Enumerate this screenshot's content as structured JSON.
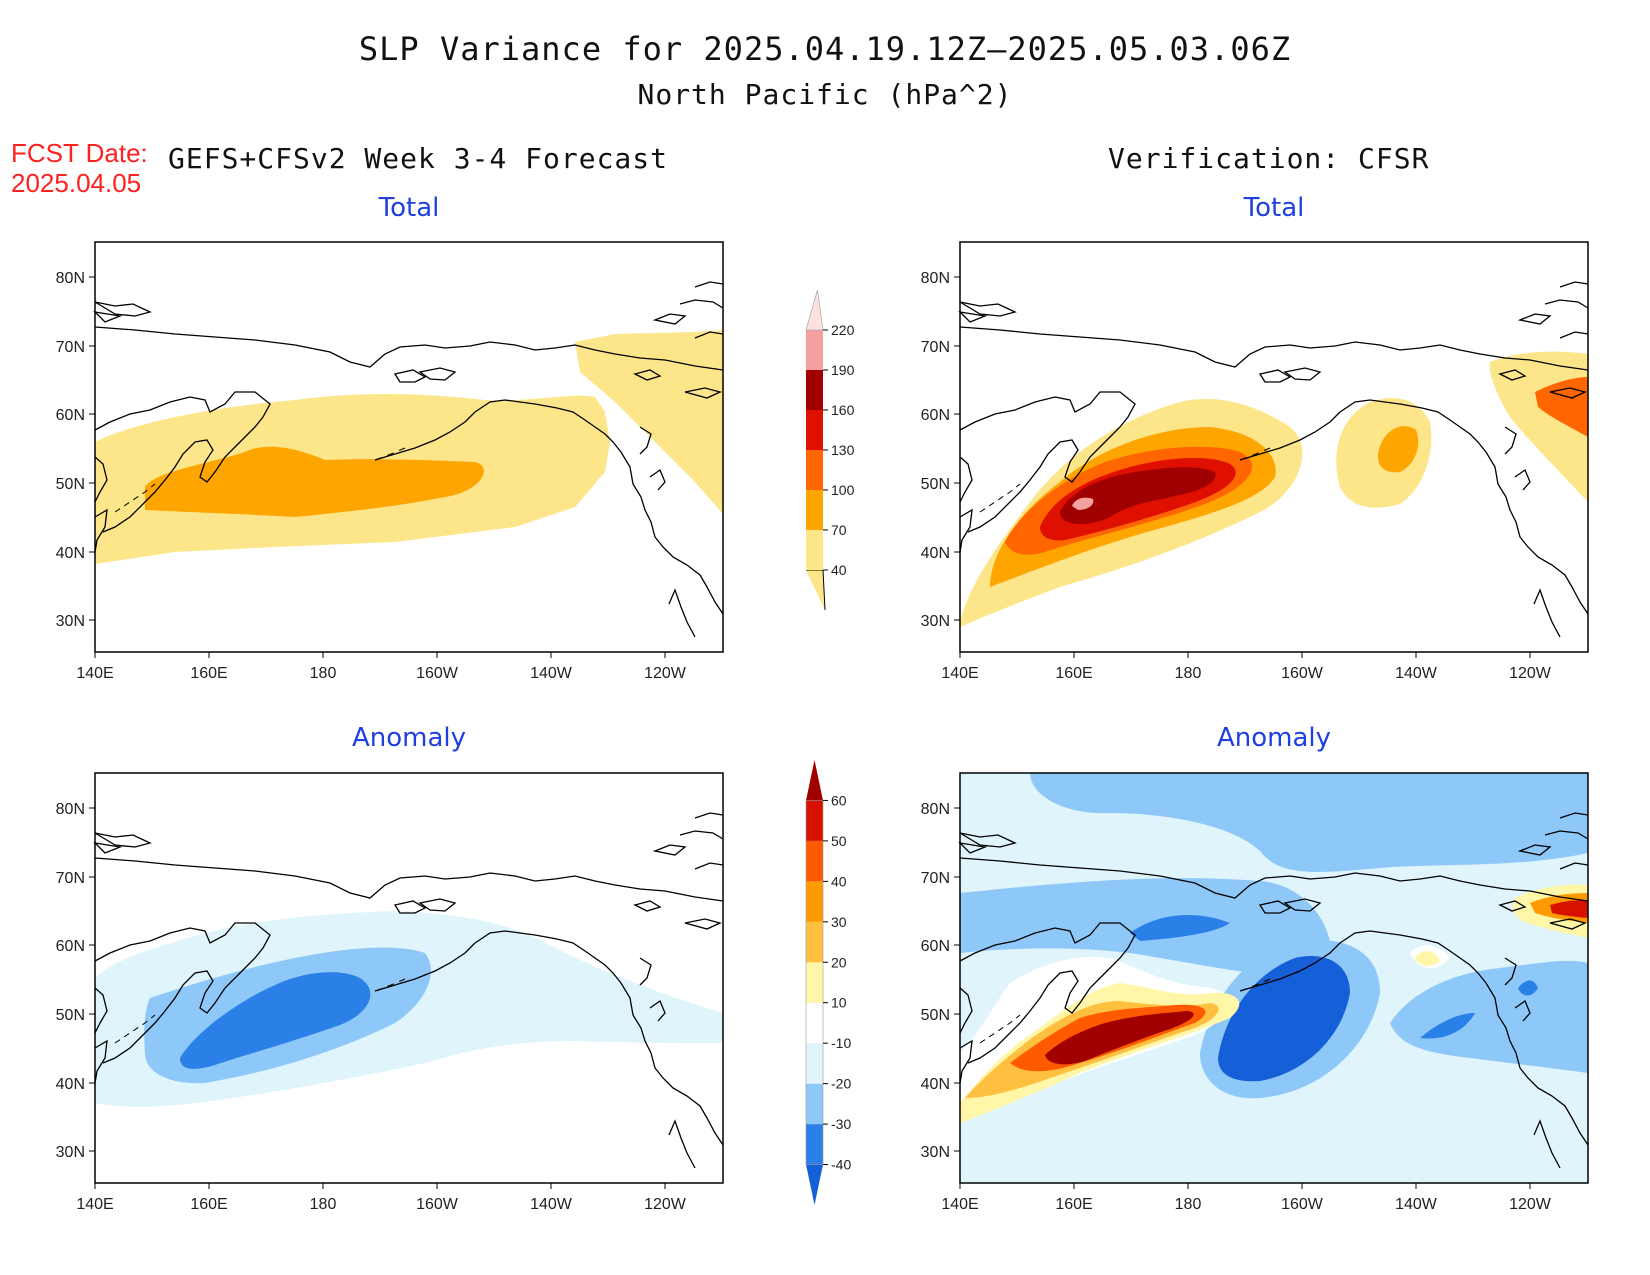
{
  "header": {
    "title": "SLP Variance for 2025.04.19.12Z–2025.05.03.06Z",
    "subtitle": "North Pacific (hPa^2)",
    "fcst_label": "FCST Date:",
    "fcst_date": "2025.04.05",
    "left_heading": "GEFS+CFSv2 Week 3-4 Forecast",
    "right_heading": "Verification: CFSR"
  },
  "panels": {
    "tl": {
      "title": "Total"
    },
    "tr": {
      "title": "Total"
    },
    "bl": {
      "title": "Anomaly"
    },
    "br": {
      "title": "Anomaly"
    }
  },
  "axes": {
    "lon_ticks": [
      "140E",
      "160E",
      "180",
      "160W",
      "140W",
      "120W"
    ],
    "lat_ticks": [
      "80N",
      "70N",
      "60N",
      "50N",
      "40N",
      "30N"
    ]
  },
  "colorbars": {
    "total": {
      "levels": [
        "40",
        "70",
        "100",
        "130",
        "160",
        "190",
        "220"
      ],
      "colors": [
        "#fde68a",
        "#ffa500",
        "#ff6600",
        "#e01000",
        "#a00000",
        "#f4a0a0",
        "#fde0e0"
      ]
    },
    "anomaly": {
      "levels": [
        "-40",
        "-30",
        "-20",
        "-10",
        "10",
        "20",
        "30",
        "40",
        "50",
        "60"
      ],
      "colors": [
        "#1560d8",
        "#2b80e8",
        "#8ec8f8",
        "#dff4fb",
        "#ffffff",
        "#fff6a8",
        "#ffc040",
        "#ff9a00",
        "#ff5a00",
        "#d81000",
        "#a00000"
      ]
    }
  },
  "colors": {
    "title_blue": "#1f3fe0",
    "fcst_red": "#ff2020"
  }
}
